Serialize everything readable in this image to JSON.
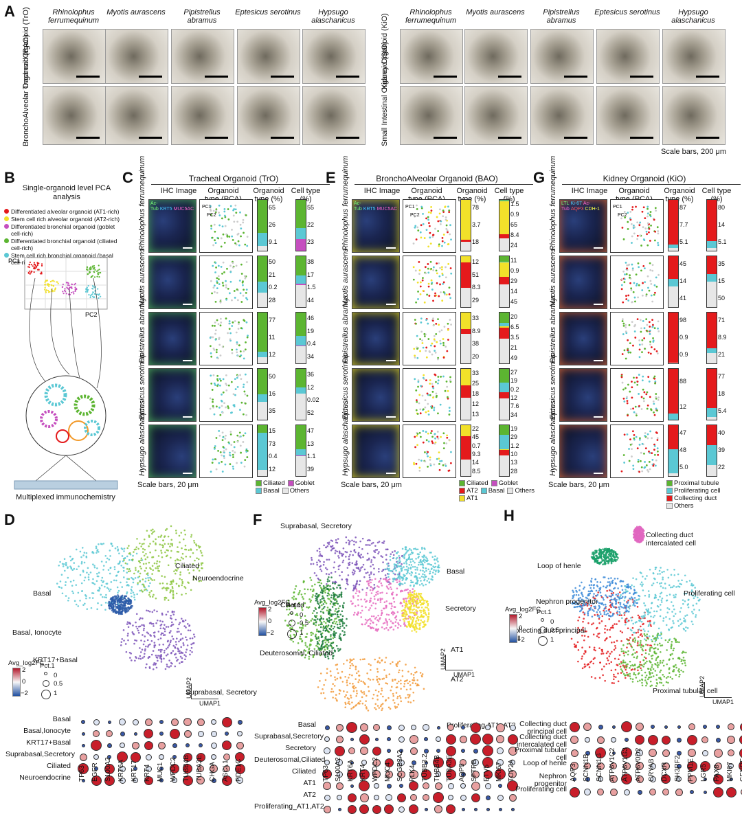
{
  "panelA": {
    "letter": "A",
    "species": [
      "Rhinolophus ferrumequinum",
      "Myotis aurascens",
      "Pipistrellus abramus",
      "Eptesicus serotinus",
      "Hypsugo alaschanicus"
    ],
    "left_rows": [
      "Tracheal Organoid (TrO)",
      "BronchoAlveolar Organoid (BAO)"
    ],
    "right_rows": [
      "Kidney Organoid (KiO)",
      "Small Intestinal Organoid (SIO)"
    ],
    "scale": "Scale bars, 200 μm"
  },
  "panelB": {
    "letter": "B",
    "title": "Single-organoid level PCA analysis",
    "legend": [
      {
        "label": "Differentiated alveolar organoid (AT1-rich)",
        "color": "#e41a1c"
      },
      {
        "label": "Stem cell rich alveolar organoid (AT2-rich)",
        "color": "#f2e12a"
      },
      {
        "label": "Differentiated bronchial organoid (goblet cell-rich)",
        "color": "#c54fbf"
      },
      {
        "label": "Differentiated bronchial organoid (ciliated cell-rich)",
        "color": "#5cb531"
      },
      {
        "label": "Stem cell rich bronchial organoid (basal cell-rich)",
        "color": "#5bc8d4"
      }
    ],
    "pc1": "PC1",
    "pc2": "PC2",
    "bottom": "Multiplexed immunochemistry"
  },
  "panelC": {
    "letter": "C",
    "title": "Tracheal Organoid (TrO)",
    "headers": [
      "IHC Image",
      "Organoid type (PCA)",
      "Organoid type (%)",
      "Cell type (%)"
    ],
    "rows": [
      {
        "org": [
          "65",
          "26",
          "9.1"
        ],
        "cell": [
          "55",
          "22",
          "23"
        ]
      },
      {
        "org": [
          "50",
          "21",
          "0.2",
          "28"
        ],
        "cell": [
          "38",
          "17",
          "1.5",
          "44"
        ]
      },
      {
        "org": [
          "77",
          "11",
          "12"
        ],
        "cell": [
          "46",
          "19",
          "0.4",
          "34"
        ]
      },
      {
        "org": [
          "50",
          "16",
          "35"
        ],
        "cell": [
          "36",
          "12",
          "0.02",
          "52"
        ]
      },
      {
        "org": [
          "15",
          "73",
          "0.4",
          "12"
        ],
        "cell": [
          "47",
          "13",
          "1.1",
          "39"
        ]
      }
    ],
    "legend": [
      "Ciliated",
      "Goblet",
      "Basal",
      "Others"
    ],
    "stain": [
      "Ac-Tub",
      "KRT5",
      "MUC5AC"
    ],
    "scale": "Scale bars, 20 μm"
  },
  "panelE": {
    "letter": "E",
    "title": "BronchoAlveolar Organoid (BAO)",
    "headers": [
      "IHC Image",
      "Organoid type (PCA)",
      "Organoid type (%)",
      "Cell type (%)"
    ],
    "rows": [
      {
        "org": [
          "78",
          "3.7",
          "18"
        ],
        "cell": [
          "1.5",
          "0.9",
          "65",
          "8.4",
          "24"
        ]
      },
      {
        "org": [
          "12",
          "51",
          "8.3",
          "29"
        ],
        "cell": [
          "11",
          "0.9",
          "29",
          "14",
          "45"
        ]
      },
      {
        "org": [
          "33",
          "8.9",
          "38",
          "20"
        ],
        "cell": [
          "20",
          "6.5",
          "3.5",
          "21",
          "49"
        ]
      },
      {
        "org": [
          "33",
          "25",
          "18",
          "12",
          "13"
        ],
        "cell": [
          "27",
          "19",
          "0.2",
          "12",
          "7.6",
          "34"
        ]
      },
      {
        "org": [
          "22",
          "45",
          "0.7",
          "9.3",
          "14",
          "8.5"
        ],
        "cell": [
          "19",
          "29",
          "1.2",
          "10",
          "13",
          "28"
        ]
      }
    ],
    "legend": [
      "Ciliated",
      "Goblet",
      "AT2",
      "Basal",
      "Others",
      "AT1"
    ],
    "stain": [
      "Ac-Tub",
      "KRT5",
      "MUC5AC",
      "SFTPC",
      "AQP5"
    ],
    "scale": "Scale bars, 20 μm"
  },
  "panelG": {
    "letter": "G",
    "title": "Kidney Organoid (KiO)",
    "headers": [
      "IHC Image",
      "Organoid type (PCA)",
      "Organoid type (%)",
      "Cell type (%)"
    ],
    "rows": [
      {
        "org": [
          "87",
          "7.7",
          "5.1"
        ],
        "cell": [
          "80",
          "14",
          "5.1"
        ]
      },
      {
        "org": [
          "45",
          "14",
          "41"
        ],
        "cell": [
          "35",
          "15",
          "50"
        ]
      },
      {
        "org": [
          "98",
          "0.9",
          "0.9"
        ],
        "cell": [
          "71",
          "8.9",
          "21"
        ]
      },
      {
        "org": [
          "88",
          "12"
        ],
        "cell": [
          "77",
          "18",
          "5.4"
        ]
      },
      {
        "org": [
          "47",
          "48",
          "5.0"
        ],
        "cell": [
          "40",
          "39",
          "22"
        ]
      }
    ],
    "legend": [
      "Proximal tubule",
      "Proliferating cell",
      "Collecting duct",
      "Others"
    ],
    "stain": [
      "LTL",
      "Ki-67",
      "Ac-Tub",
      "AQP3",
      "CDH-1"
    ],
    "scale": "Scale bars, 20 μm"
  },
  "panelD": {
    "letter": "D",
    "clusters": [
      "Ciliated",
      "Basal",
      "Neuroendocrine",
      "Basal, Ionocyte",
      "KRT17+Basal",
      "Suprabasal, Secretory"
    ],
    "rows": [
      "Basal",
      "Basal,Ionocyte",
      "KRT17+Basal",
      "Suprabasal,Secretory",
      "Ciliated",
      "Neuroendocrine"
    ],
    "genes": [
      "TP63",
      "EGFR",
      "S100A2",
      "KRT6A",
      "KRT17",
      "KRT4",
      "MUC1",
      "WFDC2",
      "TUBB4B",
      "TUBA3E",
      "CHGA",
      "ASCL1",
      "PDE1C"
    ]
  },
  "panelF": {
    "letter": "F",
    "clusters": [
      "Suprabasal, Secretory",
      "Basal",
      "Ciliated",
      "Secretory",
      "Deuterosomal, Ciliated",
      "AT1",
      "AT2",
      "Proliferating AT1, AT2"
    ],
    "rows": [
      "Basal",
      "Suprabasal,Secretory",
      "Secretory",
      "Deuterosomal,Ciliated",
      "Ciliated",
      "AT1",
      "AT2",
      "Proliferating_AT1,AT2"
    ],
    "genes": [
      "TP63",
      "S100A2",
      "KRT6A",
      "KRT4",
      "WFDC2",
      "MUC4",
      "SCGB3A2",
      "PLK4",
      "TUBB3.2",
      "TUBB4B",
      "TUBA3E",
      "AQP5",
      "SFTPB",
      "ETV5",
      "MKI67",
      "TOP2A"
    ]
  },
  "panelH": {
    "letter": "H",
    "clusters": [
      "Collecting duct intercalated cell",
      "Loop of henle",
      "Nephron progenitor",
      "Proliferating cell",
      "Collecting duct principal cell",
      "Proximal tubular cell"
    ],
    "rows": [
      "Collecting duct principal cell",
      "Collecting duct intercalated cell",
      "Proximal tubular cell",
      "Loop of henle",
      "Nephron progenitor",
      "Proliferating cell"
    ],
    "genes": [
      "AQP3",
      "SCNN1B",
      "SCNN1G",
      "ATP6V1C2",
      "ATP6V1G3",
      "ATP6V0D2",
      "CRYAB",
      "DCXR",
      "SH3RF2",
      "PPM1E",
      "LGR5",
      "PAX8",
      "MKI67",
      "CENPF",
      "TOP2A"
    ]
  },
  "legendCommon": {
    "fc": "Avg_log2FC",
    "pct": "Pct.1",
    "v2": "2",
    "v0": "0",
    "vm2": "−2",
    "p0": "0",
    "p05": "0.5",
    "p1": "1",
    "umap2": "UMAP2",
    "umap1": "UMAP1"
  }
}
